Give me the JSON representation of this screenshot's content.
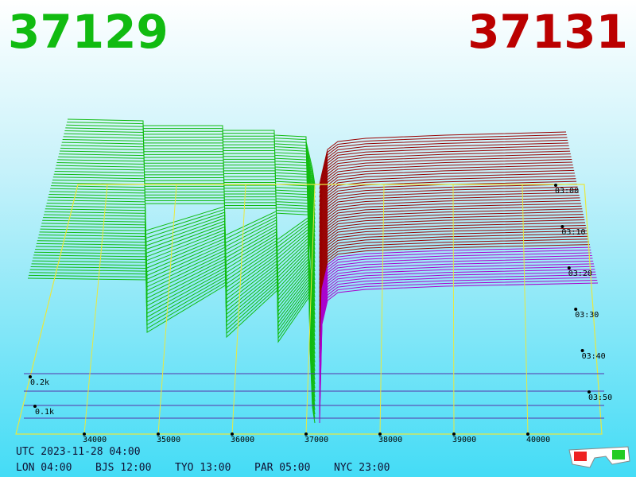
{
  "header": {
    "bid": "37129",
    "ask": "37131"
  },
  "price_axis": {
    "labels": [
      "34000",
      "35000",
      "36000",
      "37000",
      "38000",
      "39000",
      "40000"
    ]
  },
  "time_axis": {
    "labels": [
      "03:00",
      "03:10",
      "03:20",
      "03:30",
      "03:40",
      "03:50"
    ]
  },
  "depth_axis": {
    "labels": [
      "0.2k",
      "0.1k"
    ]
  },
  "footer": {
    "utc": "UTC 2023-11-28 04:00",
    "clocks": [
      "LON 04:00",
      "BJS 12:00",
      "TYO 13:00",
      "PAR 05:00",
      "NYC 23:00"
    ]
  }
}
